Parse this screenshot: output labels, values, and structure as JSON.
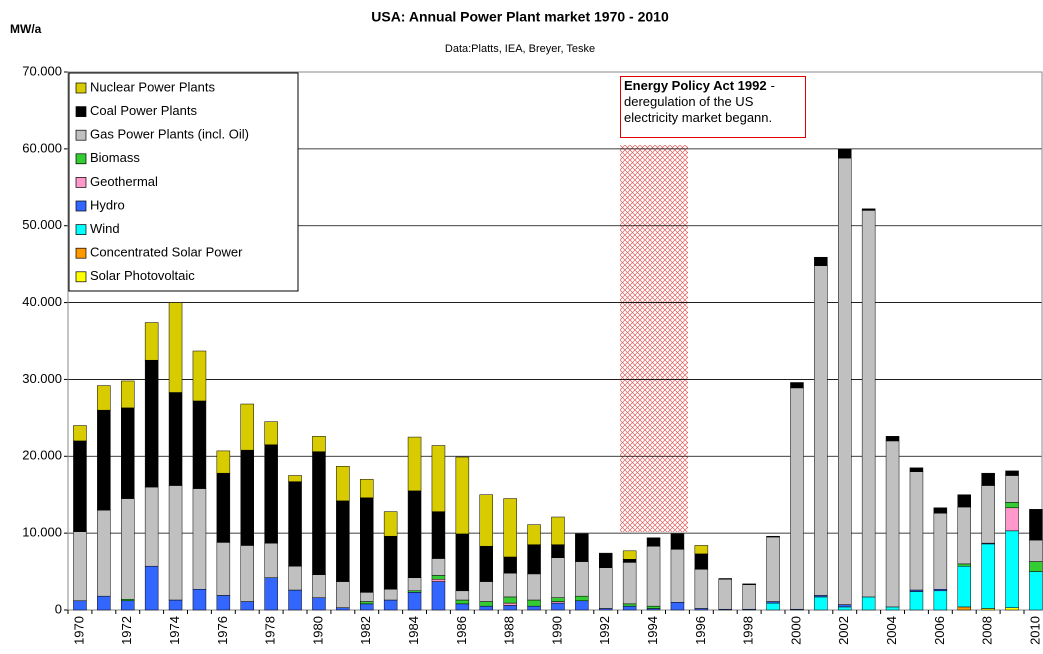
{
  "chart_data": {
    "type": "stacked-bar",
    "title": "USA: Annual Power Plant market 1970 - 2010",
    "subtitle": "Data:Platts, IEA, Breyer, Teske",
    "y_label": "MW/a",
    "annotation": {
      "title": "Energy Policy Act 1992",
      "text": "- deregulation of the US electricity market begann."
    },
    "categories": [
      "1970",
      null,
      "1972",
      null,
      "1974",
      null,
      "1976",
      null,
      "1978",
      null,
      "1980",
      null,
      "1982",
      null,
      "1984",
      null,
      "1986",
      null,
      "1988",
      null,
      "1990",
      null,
      "1992",
      null,
      "1994",
      null,
      "1996",
      null,
      "1998",
      null,
      "2000",
      null,
      "2002",
      null,
      "2004",
      null,
      "2006",
      null,
      "2008",
      null,
      "2010"
    ],
    "ylim": [
      0,
      70000
    ],
    "yticks": [
      0,
      {
        "value": 10000,
        "label": "10.000"
      },
      {
        "value": 20000,
        "label": "20.000"
      },
      {
        "value": 30000,
        "label": "30.000"
      },
      {
        "value": 40000,
        "label": "40.000"
      },
      {
        "value": 50000,
        "label": "50.000"
      },
      {
        "value": 60000,
        "label": "60.000"
      },
      {
        "value": 70000,
        "label": "70.000"
      }
    ],
    "grid": true,
    "legend": "top-left",
    "series": [
      {
        "name": "Nuclear Power Plants",
        "color": "#d8cc00",
        "values": [
          2000,
          3200,
          3500,
          4900,
          11700,
          6500,
          2900,
          6000,
          3000,
          800,
          2000,
          4500,
          2400,
          3200,
          7000,
          8600,
          10000,
          6700,
          7600,
          2600,
          3600,
          0,
          0,
          1100,
          0,
          0,
          1100,
          0,
          0,
          0,
          0,
          0,
          0,
          0,
          0,
          0,
          0,
          0,
          0,
          0,
          0
        ]
      },
      {
        "name": "Coal Power Plants",
        "color": "#000000",
        "values": [
          11800,
          13000,
          11800,
          16500,
          12100,
          11400,
          9000,
          12400,
          12800,
          11000,
          16000,
          10500,
          12300,
          6900,
          11300,
          6100,
          7400,
          4600,
          2100,
          3800,
          1700,
          3600,
          1900,
          400,
          1100,
          2000,
          2000,
          100,
          100,
          100,
          700,
          1100,
          1200,
          200,
          600,
          500,
          700,
          1600,
          1600,
          600,
          4000
        ]
      },
      {
        "name": "Gas Power Plants (incl. Oil)",
        "color": "#c0c0c0",
        "values": [
          9000,
          11200,
          13100,
          10300,
          14900,
          13100,
          6900,
          7300,
          4500,
          3100,
          3000,
          3400,
          1200,
          1400,
          1700,
          2200,
          1200,
          2600,
          3100,
          3400,
          5200,
          4500,
          5300,
          5400,
          7800,
          6900,
          5100,
          3900,
          3200,
          8400,
          28800,
          42900,
          58100,
          50300,
          21600,
          15400,
          9900,
          7400,
          7500,
          3500,
          2800
        ]
      },
      {
        "name": "Biomass",
        "color": "#33cc33",
        "values": [
          0,
          0,
          200,
          0,
          0,
          0,
          0,
          0,
          0,
          0,
          0,
          0,
          300,
          0,
          200,
          500,
          500,
          600,
          800,
          800,
          500,
          600,
          0,
          300,
          300,
          0,
          0,
          0,
          0,
          0,
          0,
          0,
          0,
          0,
          0,
          0,
          0,
          300,
          0,
          700,
          1300
        ]
      },
      {
        "name": "Geothermal",
        "color": "#ff99cc",
        "values": [
          0,
          0,
          0,
          0,
          0,
          0,
          0,
          0,
          0,
          0,
          0,
          0,
          0,
          0,
          0,
          300,
          0,
          0,
          300,
          0,
          200,
          0,
          0,
          0,
          0,
          0,
          0,
          0,
          0,
          0,
          0,
          0,
          0,
          0,
          0,
          0,
          0,
          0,
          0,
          3000,
          0
        ]
      },
      {
        "name": "Hydro",
        "color": "#3366ff",
        "values": [
          1200,
          1800,
          1200,
          5700,
          1300,
          2700,
          1900,
          1100,
          4200,
          2600,
          1600,
          300,
          800,
          1300,
          2300,
          3700,
          800,
          500,
          600,
          500,
          900,
          1200,
          200,
          500,
          200,
          1000,
          200,
          100,
          100,
          200,
          100,
          200,
          300,
          0,
          0,
          200,
          200,
          0,
          100,
          0,
          0
        ]
      },
      {
        "name": "Wind",
        "color": "#00ffff",
        "values": [
          0,
          0,
          0,
          0,
          0,
          0,
          0,
          0,
          0,
          0,
          0,
          0,
          0,
          0,
          0,
          0,
          0,
          0,
          0,
          0,
          0,
          0,
          0,
          0,
          0,
          0,
          0,
          0,
          0,
          900,
          0,
          1700,
          400,
          1700,
          400,
          2400,
          2500,
          5300,
          8400,
          10000,
          5000
        ]
      },
      {
        "name": "Concentrated Solar Power",
        "color": "#ff9900",
        "values": [
          0,
          0,
          0,
          0,
          0,
          0,
          0,
          0,
          0,
          0,
          0,
          0,
          0,
          0,
          0,
          0,
          0,
          0,
          0,
          0,
          0,
          0,
          0,
          0,
          0,
          0,
          0,
          0,
          0,
          0,
          0,
          0,
          0,
          0,
          0,
          0,
          0,
          400,
          0,
          0,
          0
        ]
      },
      {
        "name": "Solar Photovoltaic",
        "color": "#ffff00",
        "values": [
          0,
          0,
          0,
          0,
          0,
          0,
          0,
          0,
          0,
          0,
          0,
          0,
          0,
          0,
          0,
          0,
          0,
          0,
          0,
          0,
          0,
          0,
          0,
          0,
          0,
          0,
          0,
          0,
          0,
          0,
          0,
          0,
          0,
          0,
          0,
          0,
          0,
          0,
          200,
          300,
          0
        ]
      }
    ]
  }
}
